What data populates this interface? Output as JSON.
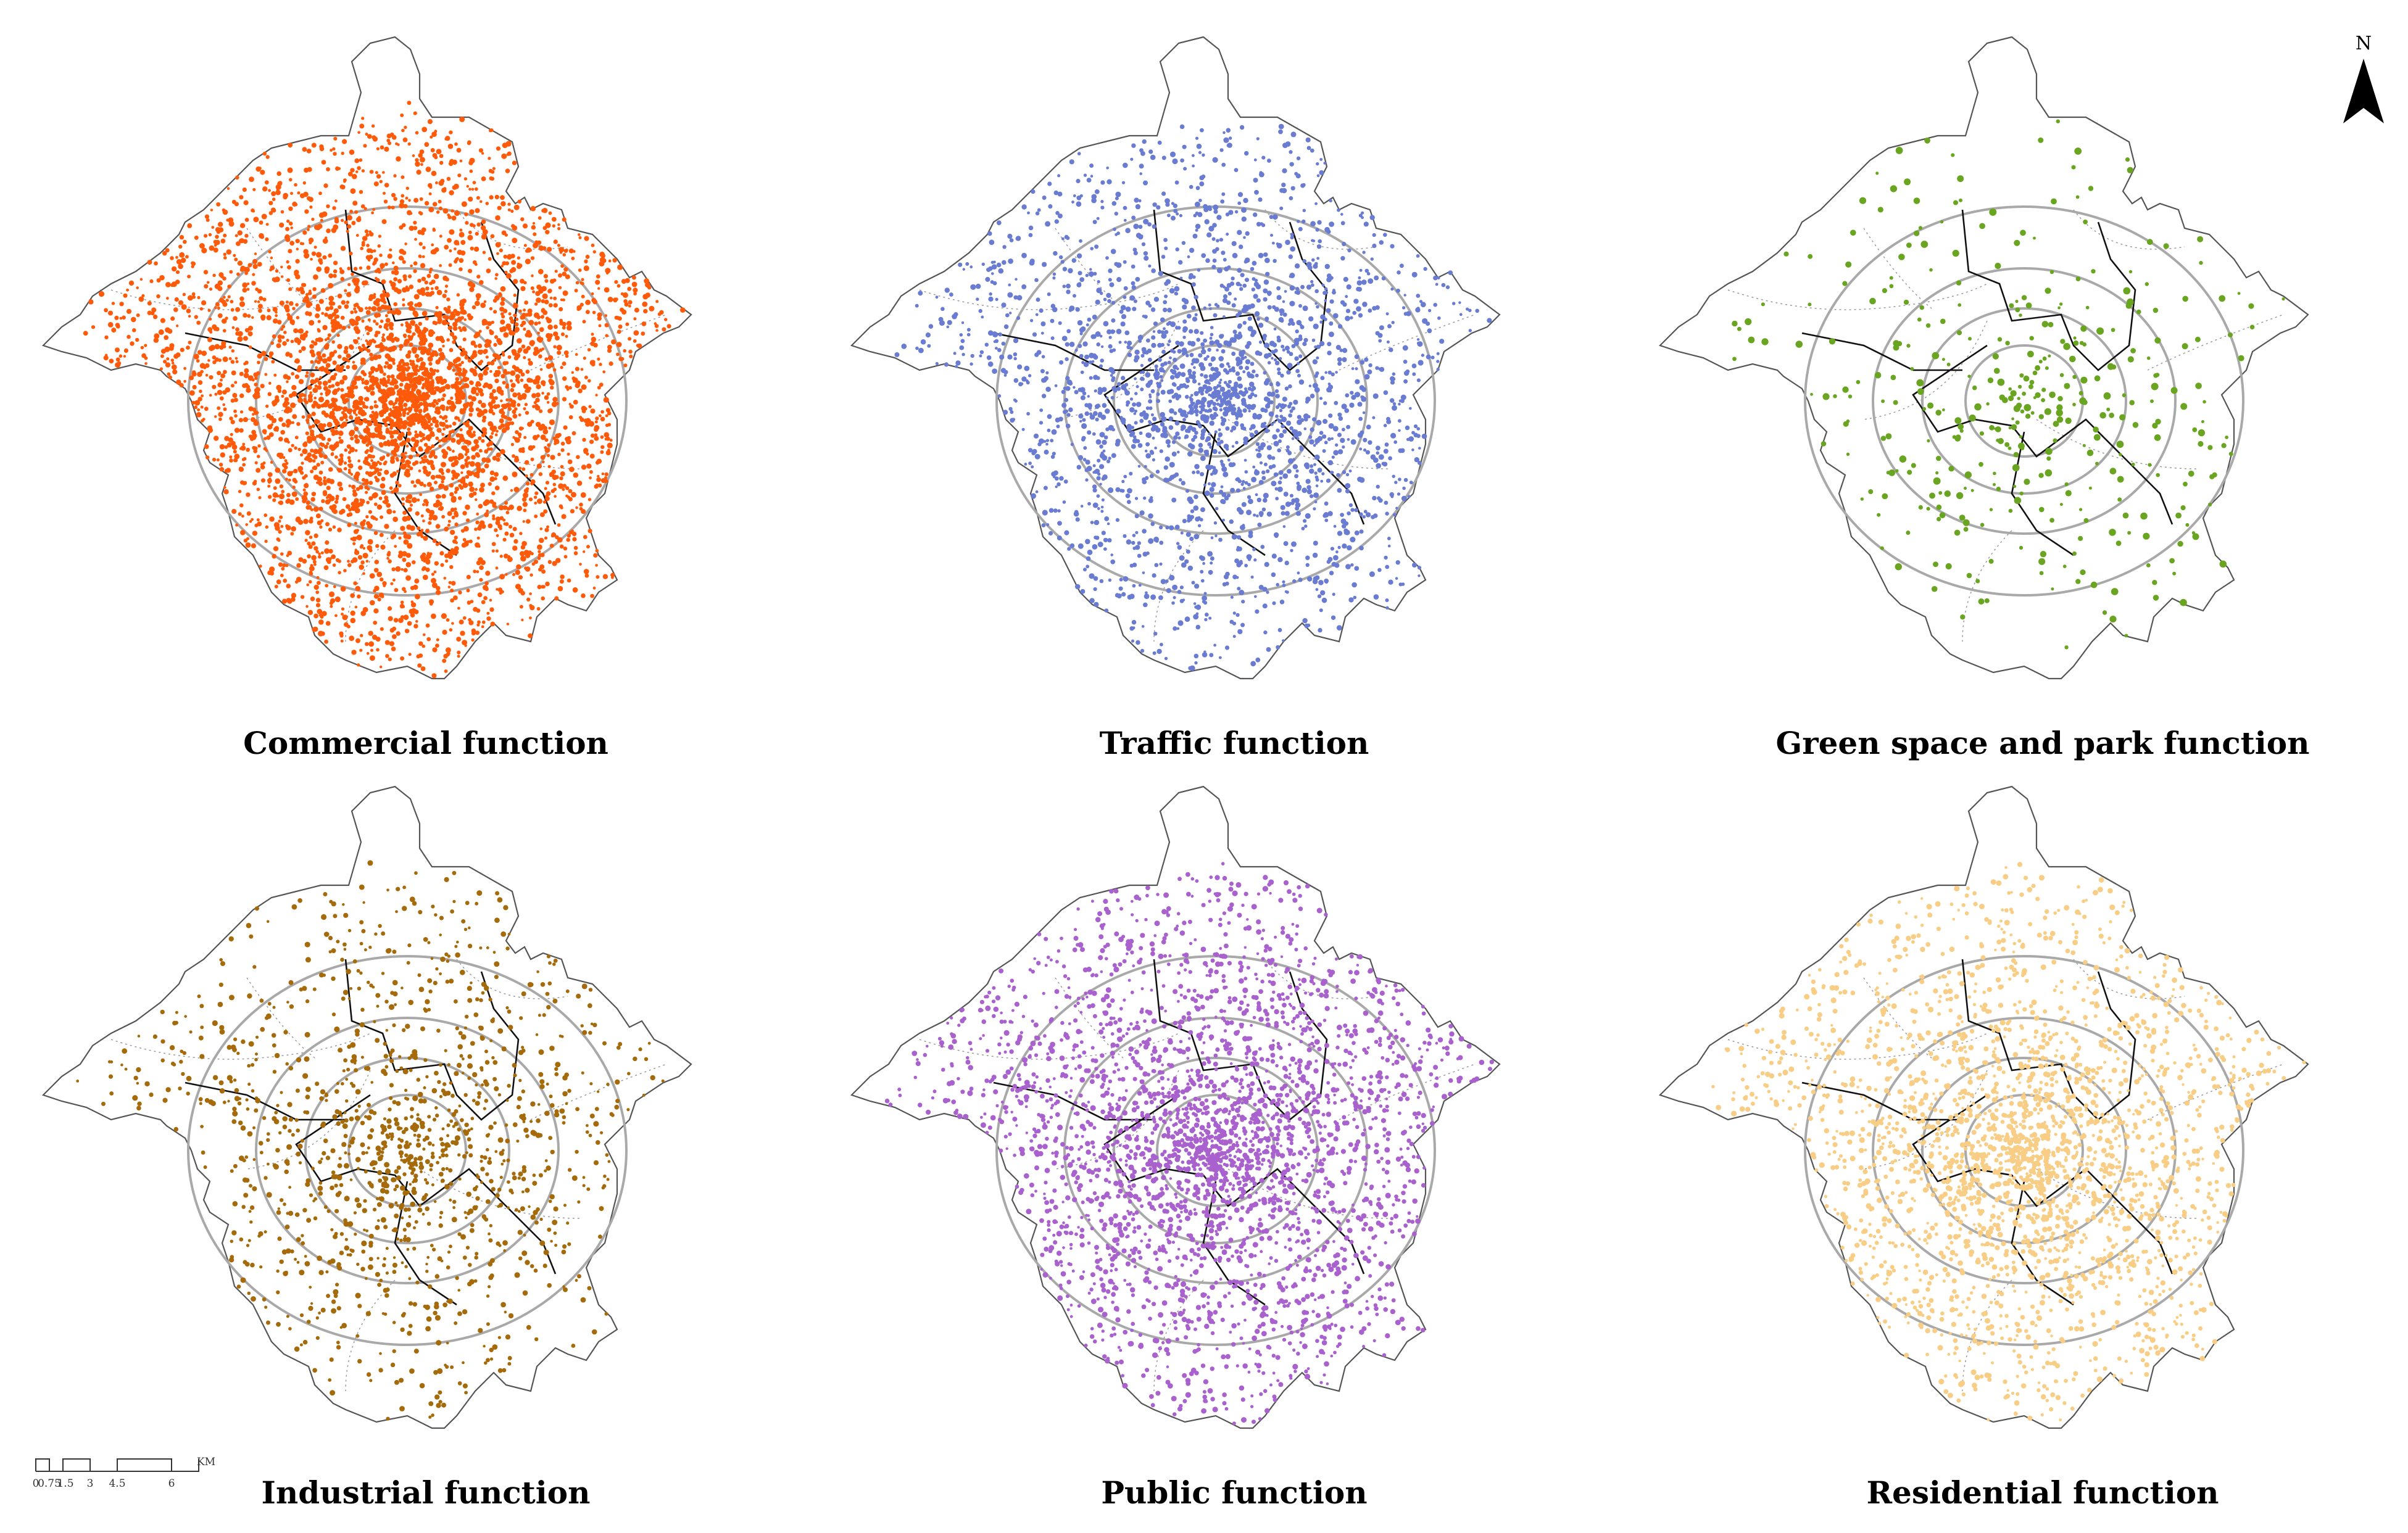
{
  "panels": [
    {
      "key": "commercial",
      "title": "Commercial function",
      "color": "#FF5A0A",
      "density": 1.0
    },
    {
      "key": "traffic",
      "title": "Traffic function",
      "color": "#6A7BD2",
      "density": 0.55
    },
    {
      "key": "green",
      "title": "Green space and park function",
      "color": "#6AA521",
      "density": 0.09
    },
    {
      "key": "industrial",
      "title": "Industrial function",
      "color": "#A56A0A",
      "density": 0.3
    },
    {
      "key": "public",
      "title": "Public function",
      "color": "#A961CE",
      "density": 0.7
    },
    {
      "key": "residential",
      "title": "Residential function",
      "color": "#F8CD85",
      "density": 0.6
    }
  ],
  "north_arrow": {
    "label": "N"
  },
  "scale_bar": {
    "ticks": [
      "0",
      "0.75",
      "1.5",
      "3",
      "4.5",
      "6"
    ],
    "unit": "KM"
  }
}
